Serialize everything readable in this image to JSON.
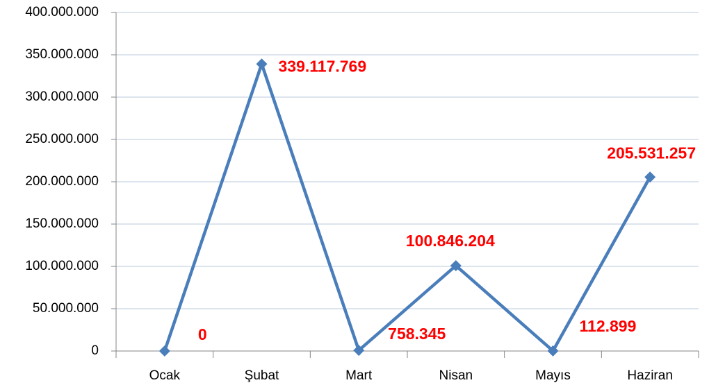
{
  "chart_data": {
    "type": "line",
    "categories": [
      "Ocak",
      "Şubat",
      "Mart",
      "Nisan",
      "Mayıs",
      "Haziran"
    ],
    "values": [
      0,
      339117769,
      758345,
      100846204,
      112899,
      205531257
    ],
    "value_labels": [
      "0",
      "339.117.769",
      "758.345",
      "100.846.204",
      "112.899",
      "205.531.257"
    ],
    "color": "#4a7ebb",
    "label_color": "#ff0000",
    "ylim": [
      0,
      400000000
    ],
    "yticks": [
      0,
      {
        "value": 50000000,
        "label": "50.000.000"
      },
      {
        "value": 100000000,
        "label": "100.000.000"
      },
      {
        "value": 150000000,
        "label": "150.000.000"
      },
      {
        "value": 200000000,
        "label": "200.000.000"
      },
      {
        "value": 250000000,
        "label": "250.000.000"
      },
      {
        "value": 300000000,
        "label": "300.000.000"
      },
      {
        "value": 350000000,
        "label": "350.000.000"
      },
      {
        "value": 400000000,
        "label": "400.000.000"
      }
    ],
    "grid": true
  }
}
